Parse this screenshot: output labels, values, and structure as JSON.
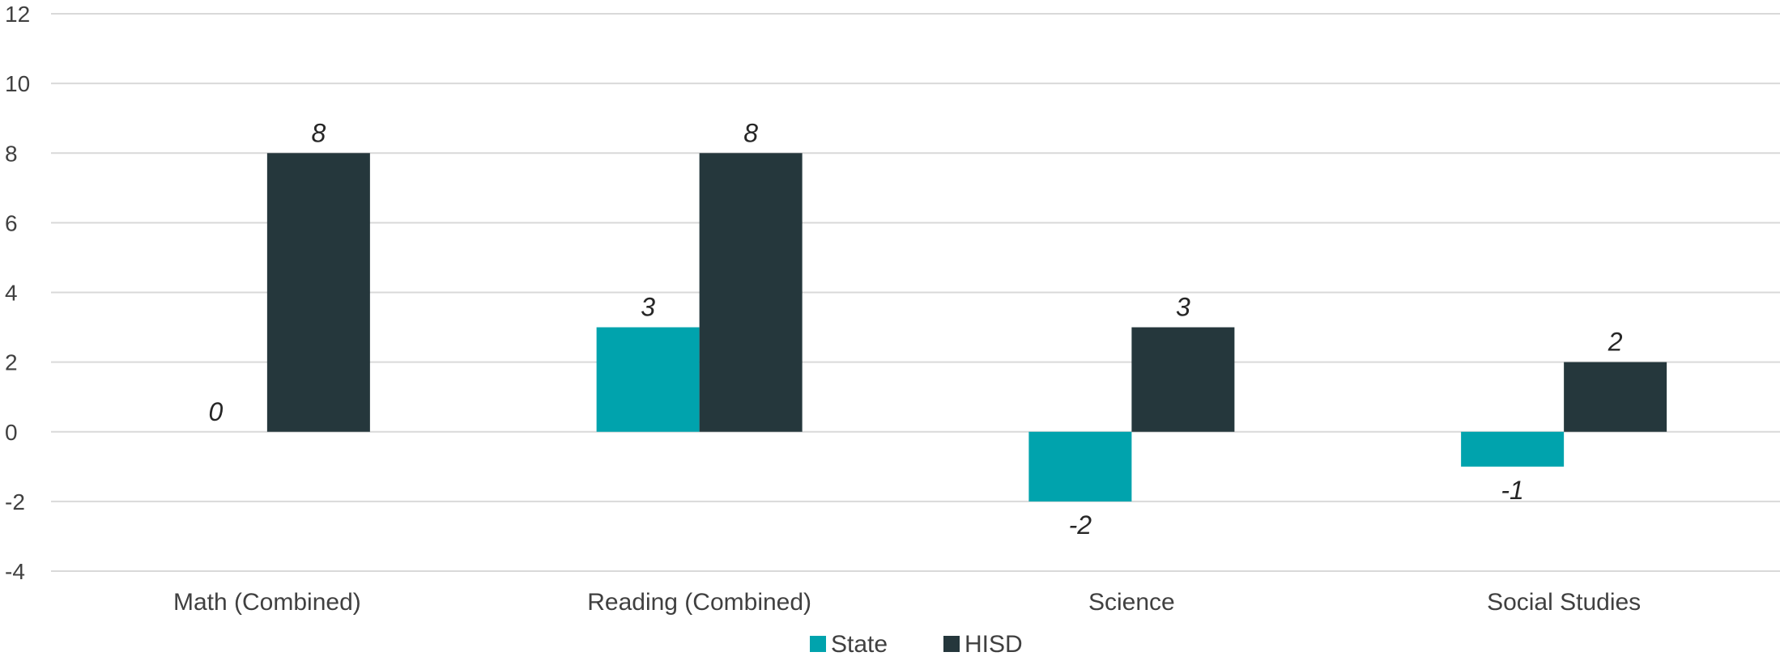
{
  "chart_data": {
    "type": "bar",
    "categories": [
      "Math (Combined)",
      "Reading (Combined)",
      "Science",
      "Social Studies"
    ],
    "series": [
      {
        "name": "State",
        "values": [
          0,
          3,
          -2,
          -1
        ],
        "color": "#00A3AD"
      },
      {
        "name": "HISD",
        "values": [
          8,
          8,
          3,
          2
        ],
        "color": "#25373C"
      }
    ],
    "data_labels": {
      "State": [
        "0",
        "3",
        "-2",
        "-1"
      ],
      "HISD": [
        "8",
        "8",
        "3",
        "2"
      ]
    },
    "yticks": [
      "12",
      "10",
      "8",
      "6",
      "4",
      "2",
      "0",
      "-2",
      "-4"
    ],
    "ylim": [
      -4,
      12
    ],
    "grid": true,
    "legend_position": "bottom"
  }
}
